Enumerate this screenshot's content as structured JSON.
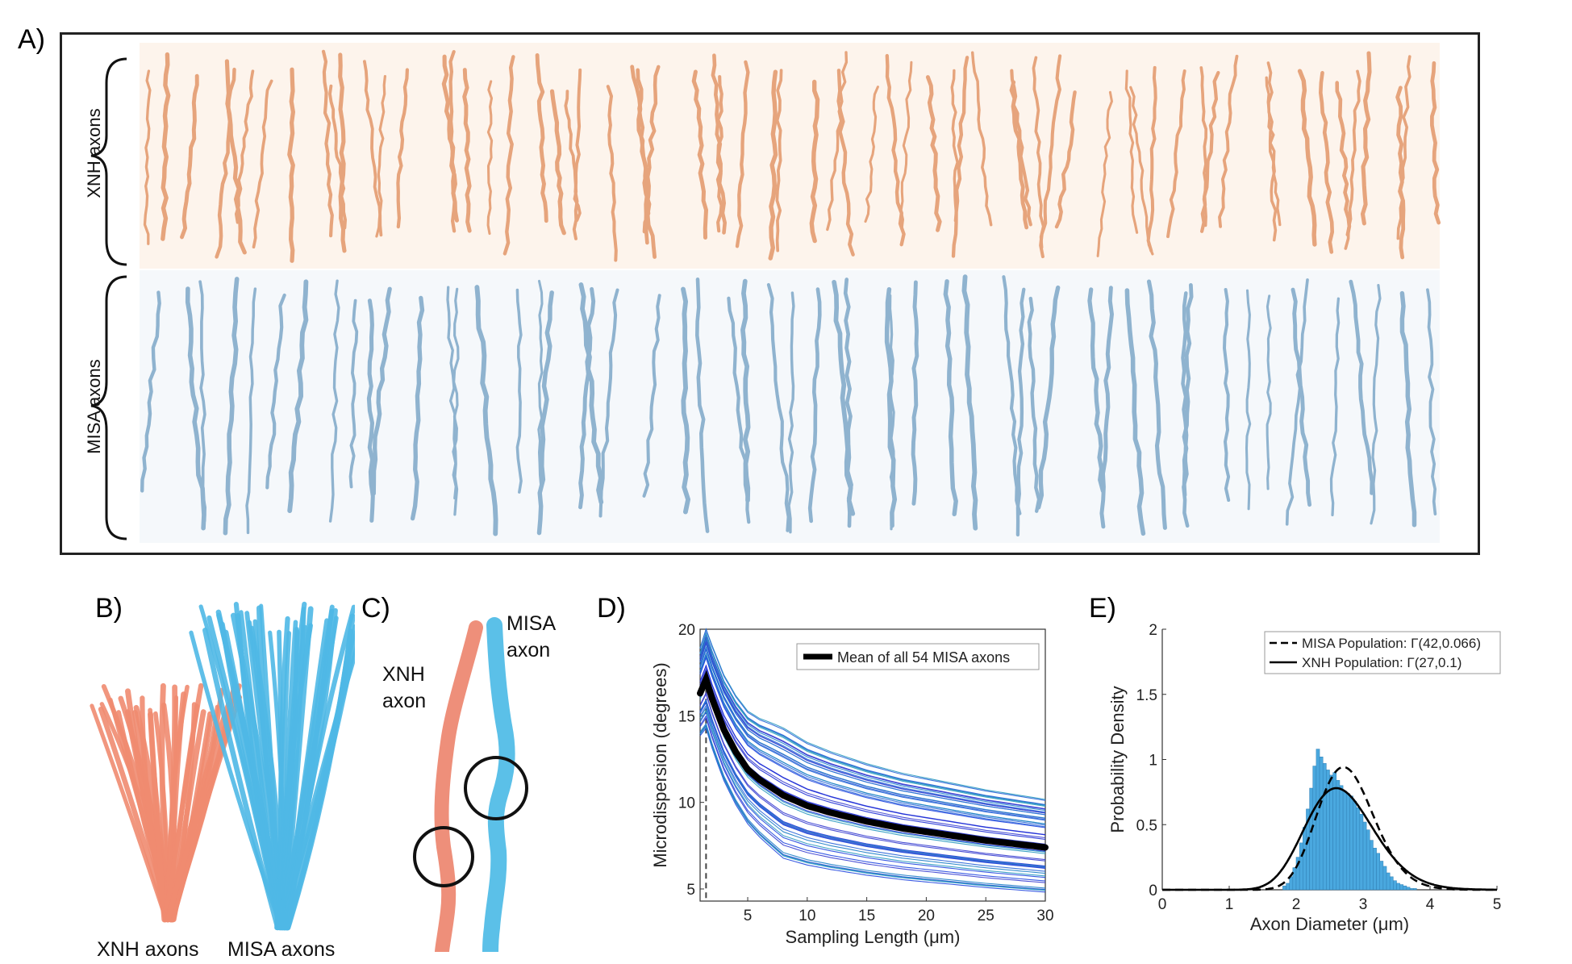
{
  "panels": {
    "a": {
      "label": "A)",
      "xnh_label": "XNH axons",
      "misa_label": "MISA axons",
      "xnh_color": "#e6a47c",
      "misa_color": "#8fb3cf"
    },
    "b": {
      "label": "B)",
      "xnh_caption": "XNH axons",
      "misa_caption": "MISA axons",
      "xnh_color": "#ef8b70",
      "misa_color": "#4fb8e6"
    },
    "c": {
      "label": "C)",
      "xnh_label": "XNH\naxon",
      "misa_label": "MISA\naxon",
      "xnh_color": "#ee8f7a",
      "misa_color": "#5bc0e8"
    },
    "d": {
      "label": "D)"
    },
    "e": {
      "label": "E)"
    }
  },
  "chart_data": [
    {
      "id": "D",
      "type": "line",
      "xlabel": "Sampling Length (μm)",
      "ylabel": "Microdispersion (degrees)",
      "xlim": [
        1,
        30
      ],
      "ylim": [
        4.3,
        20
      ],
      "xticks": [
        5,
        10,
        15,
        20,
        25,
        30
      ],
      "yticks": [
        5,
        10,
        15,
        20
      ],
      "legend": "Mean of all 54 MISA axons",
      "legend_position": "top-right",
      "n_series": 54,
      "mean_series": {
        "name": "Mean of all 54 MISA axons",
        "x": [
          1,
          1.5,
          2,
          3,
          4,
          5,
          6,
          8,
          10,
          12,
          15,
          18,
          20,
          25,
          30
        ],
        "y": [
          16.3,
          17.1,
          16.0,
          14.2,
          12.9,
          11.9,
          11.3,
          10.4,
          9.8,
          9.4,
          8.9,
          8.5,
          8.3,
          7.8,
          7.4
        ]
      },
      "vertical_marker_x": 1.5,
      "series_colors": [
        "#1f2fd6",
        "#2348e0",
        "#2a66d8",
        "#1f7fc8",
        "#2b9ac0",
        "#3a3fd0"
      ]
    },
    {
      "id": "E",
      "type": "bar",
      "xlabel": "Axon Diameter (μm)",
      "ylabel": "Probability Density",
      "xlim": [
        0,
        5
      ],
      "ylim": [
        0,
        2
      ],
      "xticks": [
        0,
        1,
        2,
        3,
        4,
        5
      ],
      "yticks": [
        0,
        0.5,
        1,
        1.5,
        2
      ],
      "legend_position": "top-right",
      "series": [
        {
          "name": "MISA Population: Γ(42,0.066)",
          "style": "dashed",
          "shape": 42,
          "scale": 0.066
        },
        {
          "name": "XNH Population: Γ(27,0.1)",
          "style": "solid",
          "shape": 27,
          "scale": 0.1
        }
      ],
      "histogram": {
        "color": "#4aa8df",
        "bin_width": 0.05,
        "bin_start": 1.8,
        "values": [
          0.03,
          0.05,
          0.1,
          0.17,
          0.25,
          0.36,
          0.48,
          0.62,
          0.78,
          0.95,
          1.08,
          1.02,
          0.97,
          0.92,
          0.88,
          0.9,
          0.84,
          0.8,
          0.76,
          0.74,
          0.72,
          0.68,
          0.63,
          0.58,
          0.52,
          0.46,
          0.38,
          0.32,
          0.28,
          0.22,
          0.18,
          0.13,
          0.1,
          0.07,
          0.05,
          0.04,
          0.03,
          0.02,
          0.01,
          0.01
        ]
      }
    }
  ]
}
